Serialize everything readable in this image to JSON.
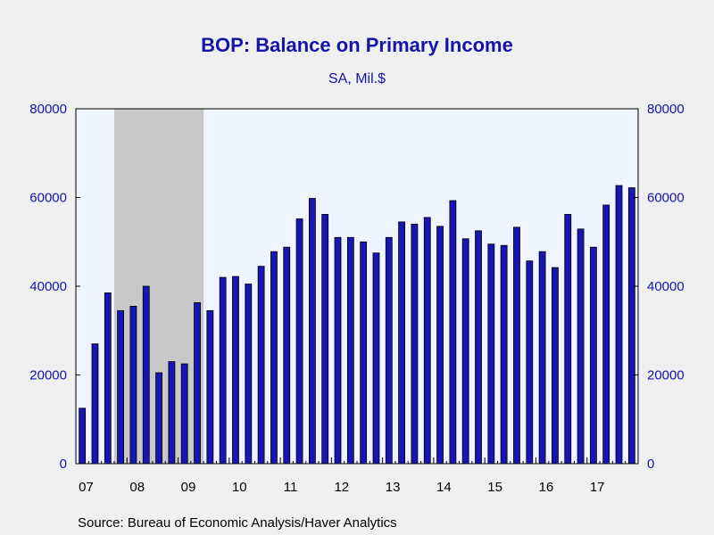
{
  "title": "BOP: Balance on Primary Income",
  "subtitle": "SA, Mil.$",
  "source": "Source:  Bureau of Economic Analysis/Haver Analytics",
  "colors": {
    "text": "#1414a8",
    "bar": "#1616b4",
    "plot_bg": "#eef5ff",
    "recession": "#c8c8c8"
  },
  "chart_data": {
    "type": "bar",
    "title": "BOP: Balance on Primary Income",
    "subtitle": "SA, Mil.$",
    "frequency": "quarterly",
    "x_tick_labels": [
      "07",
      "08",
      "09",
      "10",
      "11",
      "12",
      "13",
      "14",
      "15",
      "16",
      "17"
    ],
    "categories": [
      "2007Q1",
      "2007Q2",
      "2007Q3",
      "2007Q4",
      "2008Q1",
      "2008Q2",
      "2008Q3",
      "2008Q4",
      "2009Q1",
      "2009Q2",
      "2009Q3",
      "2009Q4",
      "2010Q1",
      "2010Q2",
      "2010Q3",
      "2010Q4",
      "2011Q1",
      "2011Q2",
      "2011Q3",
      "2011Q4",
      "2012Q1",
      "2012Q2",
      "2012Q3",
      "2012Q4",
      "2013Q1",
      "2013Q2",
      "2013Q3",
      "2013Q4",
      "2014Q1",
      "2014Q2",
      "2014Q3",
      "2014Q4",
      "2015Q1",
      "2015Q2",
      "2015Q3",
      "2015Q4",
      "2016Q1",
      "2016Q2",
      "2016Q3",
      "2016Q4",
      "2017Q1",
      "2017Q2",
      "2017Q3",
      "2017Q4"
    ],
    "values": [
      12500,
      27000,
      38500,
      34500,
      35500,
      40000,
      20500,
      23000,
      22500,
      36300,
      34500,
      42000,
      42200,
      40500,
      44500,
      47800,
      48800,
      55200,
      59800,
      56200,
      51000,
      51000,
      50000,
      47500,
      51000,
      54500,
      54000,
      55500,
      53500,
      59300,
      50700,
      52500,
      49500,
      49200,
      53300,
      45700,
      47800,
      44200,
      56200,
      52900,
      48800,
      58300,
      62700,
      62200
    ],
    "ylim": [
      0,
      80000
    ],
    "y_ticks": [
      0,
      20000,
      40000,
      60000,
      80000
    ],
    "y_axes": "left and right",
    "grid": false,
    "legend": "none",
    "shaded_recession": {
      "start": "2007Q4",
      "end": "2009Q2"
    }
  }
}
